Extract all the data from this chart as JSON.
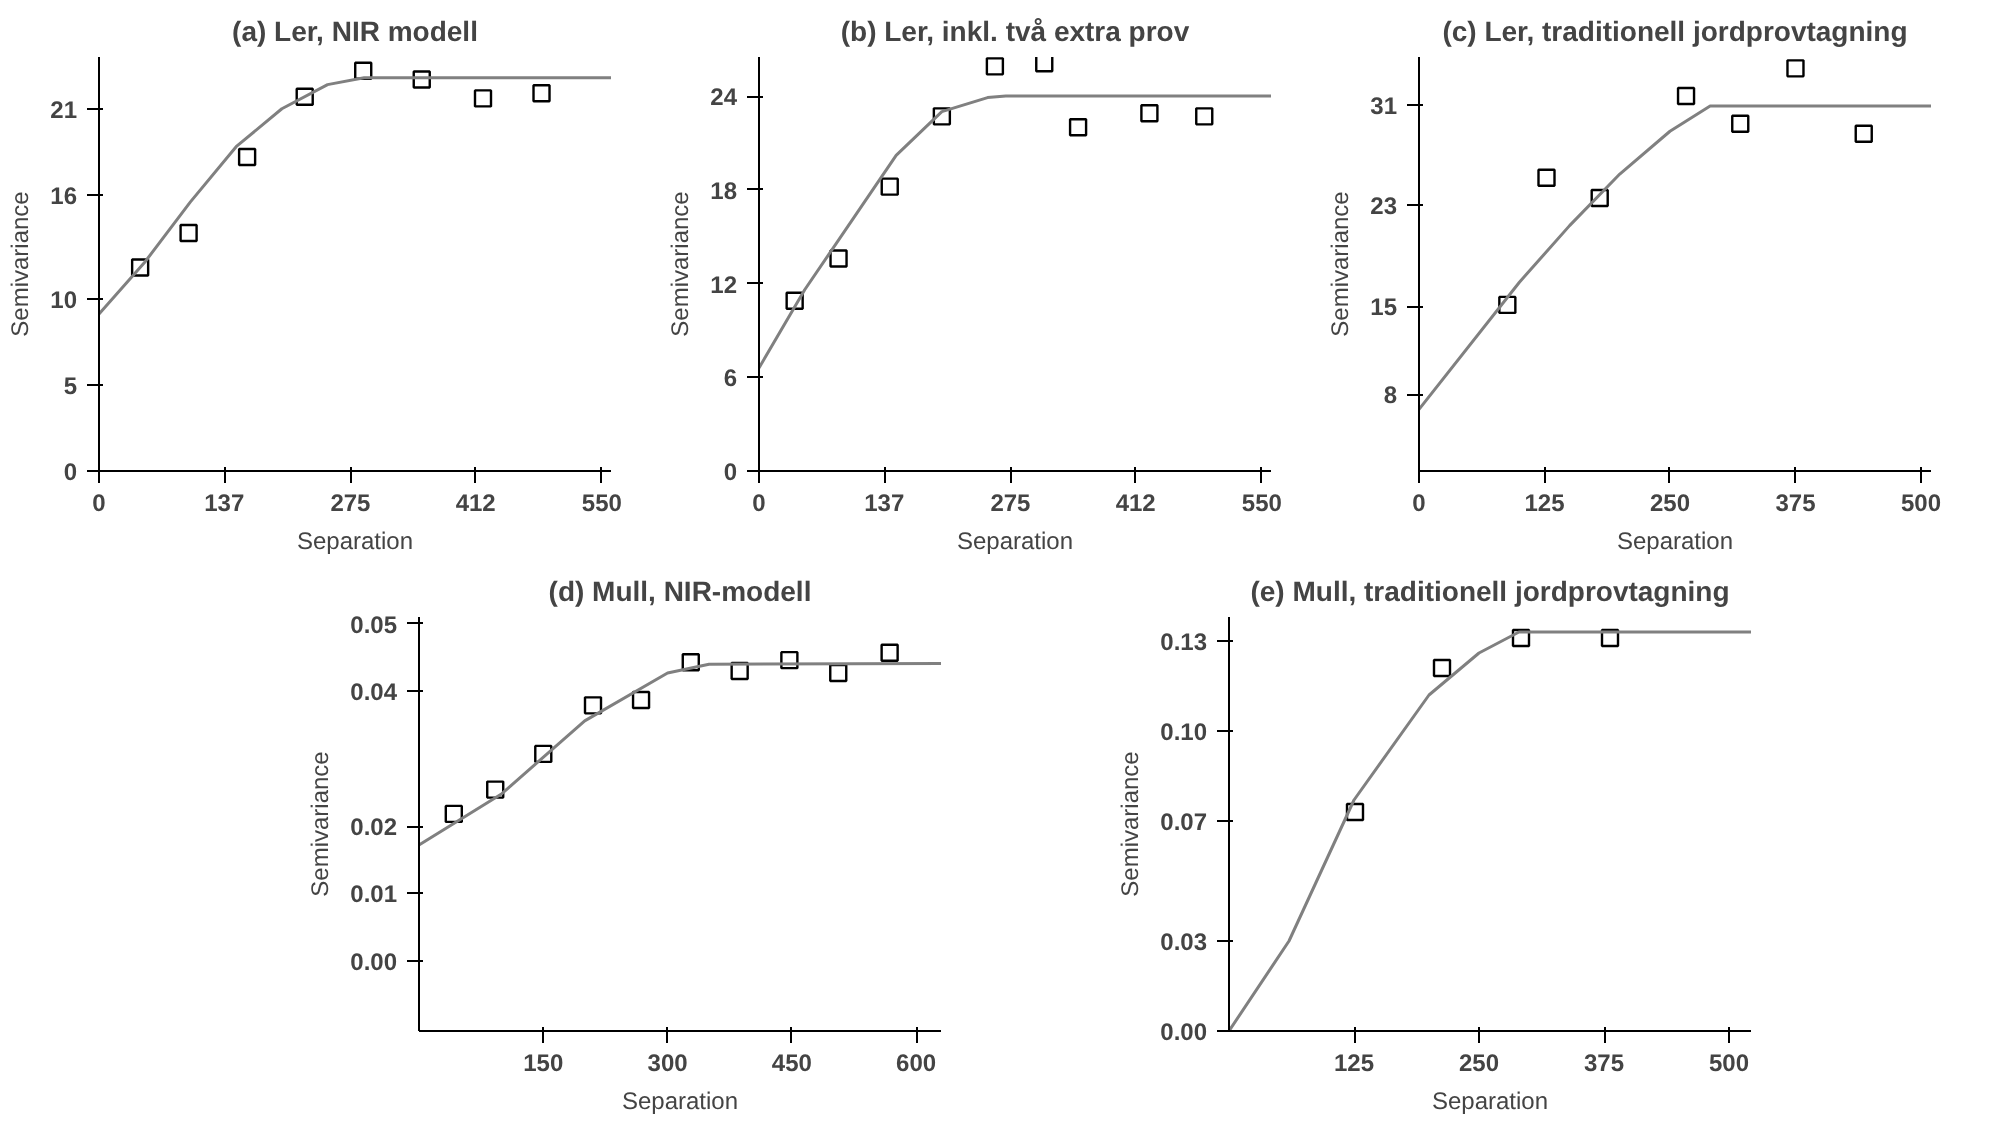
{
  "chart_data": [
    {
      "type": "scatter",
      "title": "(a) Ler, NIR modell",
      "xlabel": "Separation",
      "ylabel": "Semivariance",
      "xlim": [
        0,
        560
      ],
      "ylim": [
        0,
        24
      ],
      "xticks": [
        0,
        137,
        275,
        412,
        550
      ],
      "yticks": [
        0,
        5,
        10,
        16,
        21
      ],
      "grid": false,
      "series": [
        {
          "marker": "square",
          "color": "#000000",
          "x": [
            45,
            98,
            162,
            225,
            289,
            353,
            420,
            484
          ],
          "values": [
            11.8,
            13.8,
            18.2,
            21.7,
            23.2,
            22.7,
            21.6,
            21.9
          ]
        },
        {
          "type": "line",
          "color": "#808080",
          "x": [
            0,
            50,
            100,
            150,
            200,
            250,
            290,
            560
          ],
          "values": [
            9.1,
            12.1,
            15.6,
            18.8,
            21.0,
            22.4,
            22.8,
            22.8
          ]
        }
      ]
    },
    {
      "type": "scatter",
      "title": "(b) Ler, inkl. två extra prov",
      "xlabel": "Separation",
      "ylabel": "Semivariance",
      "xlim": [
        0,
        560
      ],
      "ylim": [
        0,
        26.5
      ],
      "xticks": [
        0,
        137,
        275,
        412,
        550
      ],
      "yticks": [
        0,
        6,
        12,
        18,
        24
      ],
      "grid": false,
      "series": [
        {
          "marker": "square",
          "color": "#000000",
          "x": [
            39,
            87,
            143,
            200,
            258,
            312,
            349,
            427,
            487
          ],
          "values": [
            10.9,
            13.6,
            18.2,
            22.7,
            25.9,
            26.1,
            22.0,
            22.9,
            22.7
          ]
        },
        {
          "type": "line",
          "color": "#808080",
          "x": [
            0,
            50,
            100,
            150,
            200,
            250,
            270,
            560
          ],
          "values": [
            6.6,
            11.6,
            15.9,
            20.2,
            23.0,
            23.9,
            24.0,
            24.0
          ]
        }
      ]
    },
    {
      "type": "scatter",
      "title": "(c) Ler, traditionell jordprovtagning",
      "xlabel": "Separation",
      "ylabel": "Semivariance",
      "xlim": [
        0,
        510
      ],
      "ylim": [
        1.9,
        34.8
      ],
      "xticks": [
        0,
        125,
        250,
        375,
        500
      ],
      "yticks": [
        8,
        15,
        23,
        31
      ],
      "grid": false,
      "series": [
        {
          "marker": "square",
          "color": "#000000",
          "x": [
            88,
            127,
            180,
            266,
            320,
            375,
            443
          ],
          "values": [
            15.1,
            25.2,
            23.6,
            31.7,
            29.5,
            33.9,
            28.7
          ]
        },
        {
          "type": "line",
          "color": "#808080",
          "x": [
            0,
            100,
            150,
            200,
            250,
            290,
            510
          ],
          "values": [
            6.8,
            16.9,
            21.4,
            25.5,
            28.9,
            30.9,
            30.9
          ]
        }
      ]
    },
    {
      "type": "scatter",
      "title": "(d) Mull, NIR-modell",
      "xlabel": "Separation",
      "ylabel": "Semivariance",
      "xlim": [
        0,
        630
      ],
      "ylim": [
        -0.0104,
        0.051
      ],
      "xticks": [
        150,
        300,
        450,
        600
      ],
      "yticks": [
        {
          "value": 0.05,
          "label": "0.05"
        },
        {
          "value": 0.04,
          "label": "0.04"
        },
        {
          "value": 0.02,
          "label": "0.02"
        },
        {
          "value": 0.01,
          "label": "0.01"
        },
        {
          "value": 0.0,
          "label": "0.00"
        }
      ],
      "grid": false,
      "series": [
        {
          "marker": "square",
          "color": "#000000",
          "x": [
            42,
            92,
            150,
            210,
            268,
            328,
            387,
            447,
            506,
            568
          ],
          "values": [
            0.0218,
            0.0254,
            0.0307,
            0.0379,
            0.0387,
            0.0443,
            0.043,
            0.0446,
            0.0427,
            0.0457
          ]
        },
        {
          "type": "line",
          "color": "#808080",
          "x": [
            0,
            100,
            200,
            300,
            350,
            630
          ],
          "values": [
            0.0172,
            0.0248,
            0.0356,
            0.0427,
            0.044,
            0.0441
          ]
        }
      ]
    },
    {
      "type": "scatter",
      "title": "(e) Mull, traditionell jordprovtagning",
      "xlabel": "Separation",
      "ylabel": "Semivariance",
      "xlim": [
        0,
        522
      ],
      "ylim": [
        0,
        0.138
      ],
      "xticks": [
        125,
        250,
        375,
        500
      ],
      "yticks": [
        {
          "value": 0.0,
          "label": "0.00"
        },
        {
          "value": 0.03,
          "label": "0.03"
        },
        {
          "value": 0.07,
          "label": "0.07"
        },
        {
          "value": 0.1,
          "label": "0.10"
        },
        {
          "value": 0.13,
          "label": "0.13"
        }
      ],
      "grid": false,
      "series": [
        {
          "marker": "square",
          "color": "#000000",
          "x": [
            126,
            213,
            292,
            381
          ],
          "values": [
            0.073,
            0.121,
            0.131,
            0.131
          ]
        },
        {
          "type": "line",
          "color": "#808080",
          "x": [
            0,
            60,
            125,
            200,
            250,
            290,
            522
          ],
          "values": [
            0.0,
            0.03,
            0.077,
            0.112,
            0.126,
            0.133,
            0.133
          ]
        }
      ]
    }
  ]
}
